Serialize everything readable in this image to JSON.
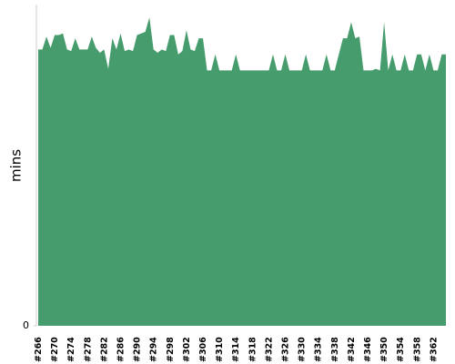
{
  "chart_data": {
    "type": "area",
    "y_label": "mins",
    "categories": [
      "#266",
      null,
      null,
      null,
      "#270",
      null,
      null,
      null,
      "#274",
      null,
      null,
      null,
      "#278",
      null,
      null,
      null,
      "#282",
      null,
      null,
      null,
      "#286",
      null,
      null,
      null,
      "#290",
      null,
      null,
      null,
      "#294",
      null,
      null,
      null,
      "#298",
      null,
      null,
      null,
      "#302",
      null,
      null,
      null,
      "#306",
      null,
      null,
      null,
      "#310",
      null,
      null,
      null,
      "#314",
      null,
      null,
      null,
      "#318",
      null,
      null,
      null,
      "#322",
      null,
      null,
      null,
      "#326",
      null,
      null,
      null,
      "#330",
      null,
      null,
      null,
      "#334",
      null,
      null,
      null,
      "#338",
      null,
      null,
      null,
      "#342",
      null,
      null,
      null,
      "#346",
      null,
      null,
      null,
      "#350",
      null,
      null,
      null,
      "#354",
      null,
      null,
      null,
      "#358",
      null,
      null,
      null,
      "#362",
      null,
      null,
      null
    ],
    "values": [
      17.2,
      17.2,
      18.0,
      17.3,
      18.1,
      18.1,
      18.2,
      17.2,
      17.1,
      17.9,
      17.2,
      17.2,
      17.2,
      18.0,
      17.3,
      17.0,
      17.2,
      16.0,
      17.9,
      17.2,
      18.2,
      17.1,
      17.2,
      17.1,
      18.1,
      18.2,
      18.3,
      19.2,
      17.2,
      17.0,
      17.2,
      17.1,
      18.1,
      18.1,
      16.9,
      17.1,
      18.4,
      17.2,
      17.1,
      17.9,
      17.9,
      15.9,
      15.9,
      16.9,
      15.9,
      15.9,
      15.9,
      15.9,
      16.9,
      15.9,
      15.9,
      15.9,
      15.9,
      15.9,
      15.9,
      15.9,
      15.9,
      16.9,
      15.9,
      15.9,
      16.9,
      15.9,
      15.9,
      15.9,
      15.9,
      16.9,
      15.9,
      15.9,
      15.9,
      15.9,
      16.9,
      15.9,
      15.9,
      16.9,
      17.9,
      17.9,
      18.9,
      17.9,
      18.0,
      15.9,
      15.9,
      15.9,
      16.0,
      15.9,
      18.9,
      15.9,
      16.9,
      15.9,
      15.9,
      16.9,
      15.9,
      15.9,
      16.9,
      16.9,
      15.9,
      16.9,
      15.9,
      15.9,
      16.9,
      16.9
    ],
    "color": "#469c6c",
    "ylim": [
      0,
      20
    ],
    "yticks": [
      0
    ]
  }
}
